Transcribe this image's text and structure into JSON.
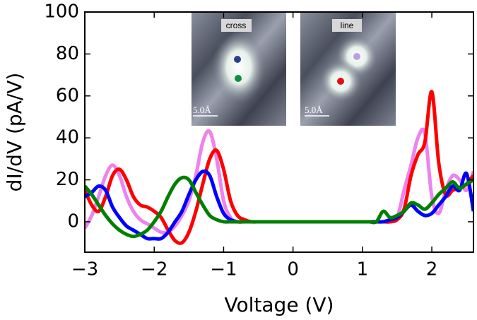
{
  "chart_data": {
    "type": "line",
    "xlabel": "Voltage (V)",
    "ylabel": "dI/dV (pA/V)",
    "x": [
      -3.0,
      -2.9,
      -2.8,
      -2.7,
      -2.6,
      -2.5,
      -2.4,
      -2.3,
      -2.2,
      -2.1,
      -2.0,
      -1.9,
      -1.8,
      -1.7,
      -1.6,
      -1.5,
      -1.4,
      -1.3,
      -1.2,
      -1.1,
      -1.0,
      -0.9,
      -0.8,
      -0.7,
      -0.6,
      -0.5,
      -0.4,
      -0.3,
      -0.2,
      -0.1,
      0.0,
      0.1,
      0.2,
      0.3,
      0.4,
      0.5,
      0.6,
      0.7,
      0.8,
      0.9,
      1.0,
      1.1,
      1.2,
      1.3,
      1.4,
      1.5,
      1.6,
      1.7,
      1.8,
      1.9,
      2.0,
      2.1,
      2.2,
      2.3,
      2.4,
      2.5,
      2.6
    ],
    "series": [
      {
        "color": "#ee82ee",
        "values": [
          -3,
          3,
          12,
          22,
          27,
          22,
          12,
          5,
          1,
          -1,
          -3,
          -5,
          -5,
          -2,
          3,
          10,
          22,
          38,
          43,
          30,
          10,
          2,
          0,
          0,
          0,
          0,
          0,
          0,
          0,
          0,
          0,
          0,
          0,
          0,
          0,
          0,
          0,
          0,
          0,
          0,
          0,
          0,
          0,
          0,
          0,
          2,
          15,
          27,
          40,
          42,
          12,
          4,
          15,
          22,
          20,
          15,
          24
        ]
      },
      {
        "color": "#ff0000",
        "values": [
          15,
          8,
          5,
          12,
          22,
          25,
          20,
          12,
          8,
          7,
          5,
          2,
          -4,
          -9,
          -10,
          -5,
          5,
          18,
          30,
          34,
          25,
          10,
          3,
          1,
          0,
          0,
          0,
          0,
          0,
          0,
          0,
          0,
          0,
          0,
          0,
          0,
          0,
          0,
          0,
          0,
          0,
          0,
          0,
          0,
          0,
          1,
          6,
          22,
          32,
          38,
          62,
          28,
          13,
          15,
          16,
          18,
          22
        ]
      },
      {
        "color": "#0000ff",
        "values": [
          12,
          14,
          17,
          15,
          7,
          2,
          -2,
          -4,
          -6,
          -8,
          -8,
          -8,
          -5,
          0,
          5,
          13,
          20,
          24,
          22,
          12,
          4,
          1,
          0,
          0,
          0,
          0,
          0,
          0,
          0,
          0,
          0,
          0,
          0,
          0,
          0,
          0,
          0,
          0,
          0,
          0,
          0,
          0,
          0,
          0,
          1,
          2,
          5,
          8,
          5,
          3,
          4,
          8,
          12,
          17,
          15,
          23,
          5
        ]
      },
      {
        "color": "#008000",
        "values": [
          17,
          13,
          8,
          3,
          -1,
          -4,
          -6,
          -7,
          -6,
          -4,
          0,
          5,
          12,
          18,
          21,
          20,
          14,
          8,
          3,
          1,
          0,
          0,
          0,
          0,
          0,
          0,
          0,
          0,
          0,
          0,
          0,
          0,
          0,
          0,
          0,
          0,
          0,
          0,
          0,
          0,
          0,
          0,
          0,
          5,
          2,
          3,
          5,
          9,
          8,
          6,
          9,
          13,
          16,
          19,
          16,
          18,
          20
        ]
      }
    ],
    "xlim": [
      -3,
      2.6
    ],
    "ylim": [
      -14.5,
      100
    ],
    "xticks": [
      {
        "value": -3,
        "label": "−3"
      },
      {
        "value": -2,
        "label": "−2"
      },
      {
        "value": -1,
        "label": "−1"
      },
      0,
      1,
      2
    ],
    "yticks": [
      0,
      20,
      40,
      60,
      80,
      100
    ],
    "insets": [
      {
        "label": "cross",
        "scale": "5.0Å"
      },
      {
        "label": "line",
        "scale": "5.0Å"
      }
    ]
  }
}
